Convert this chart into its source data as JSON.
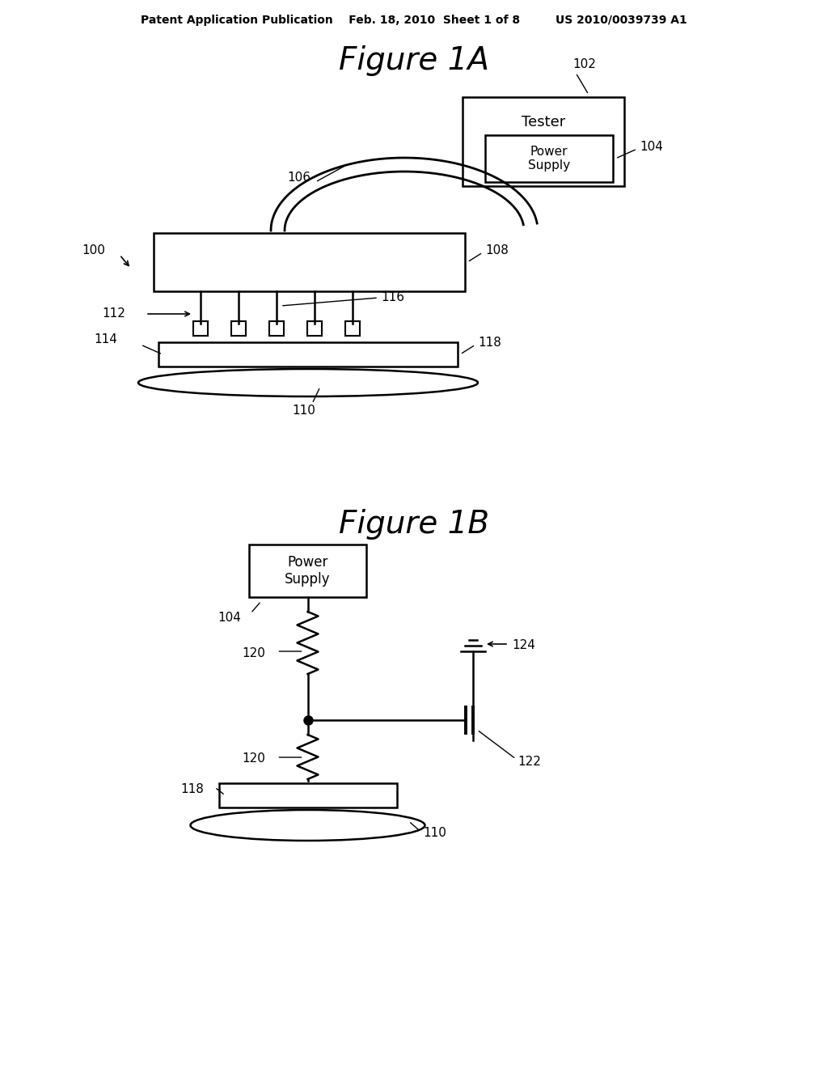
{
  "bg_color": "#ffffff",
  "line_color": "#000000",
  "header": "Patent Application Publication    Feb. 18, 2010  Sheet 1 of 8         US 2010/0039739 A1",
  "fig1a_title": "Figure 1A",
  "fig1b_title": "Figure 1B"
}
